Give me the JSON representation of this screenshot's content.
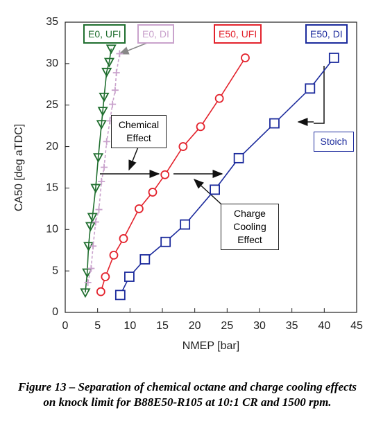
{
  "chart_data": {
    "type": "line",
    "x_label": "NMEP [bar]",
    "y_label": "CA50 [deg aTDC]",
    "xlim": [
      0,
      45
    ],
    "xticks": [
      0,
      5,
      10,
      15,
      20,
      25,
      30,
      35,
      40,
      45
    ],
    "ylim": [
      0,
      35
    ],
    "yticks": [
      0,
      5,
      10,
      15,
      20,
      25,
      30,
      35
    ],
    "grid": false,
    "series": [
      {
        "name": "E0, UFI",
        "color": "#1f6e2e",
        "marker": "triangle",
        "x": [
          3.1,
          3.4,
          3.6,
          3.9,
          4.2,
          4.7,
          5.1,
          5.6,
          5.8,
          6.0,
          6.4,
          6.8,
          7.1
        ],
        "y": [
          2.4,
          4.8,
          8.0,
          10.4,
          11.5,
          15.0,
          18.7,
          22.7,
          24.3,
          26.0,
          29.0,
          30.2,
          31.8
        ]
      },
      {
        "name": "E0, DI",
        "color": "#c9a2cc",
        "marker": "plus",
        "x": [
          3.5,
          4.0,
          4.3,
          4.7,
          5.2,
          5.6,
          6.0,
          6.4,
          6.9,
          7.3,
          7.7,
          7.9,
          8.4
        ],
        "y": [
          3.6,
          5.3,
          8.0,
          10.9,
          12.4,
          15.8,
          17.5,
          20.6,
          23.1,
          25.1,
          26.8,
          28.9,
          31.2
        ]
      },
      {
        "name": "E50, UFI",
        "color": "#e3222c",
        "marker": "circle",
        "x": [
          5.5,
          6.2,
          7.5,
          9.0,
          11.4,
          13.5,
          15.4,
          18.2,
          20.9,
          23.8,
          27.8
        ],
        "y": [
          2.5,
          4.3,
          6.9,
          8.9,
          12.5,
          14.5,
          16.6,
          20.0,
          22.4,
          25.8,
          30.7
        ]
      },
      {
        "name": "E50, DI",
        "color": "#1b2a9c",
        "marker": "square",
        "x": [
          8.5,
          9.9,
          12.3,
          15.5,
          18.5,
          23.1,
          26.8,
          32.3,
          37.8,
          41.5
        ],
        "y": [
          2.1,
          4.3,
          6.4,
          8.5,
          10.6,
          14.8,
          18.6,
          22.8,
          27.0,
          30.7
        ]
      }
    ],
    "annotations": [
      "Chemical Effect",
      "Charge Cooling Effect",
      "Stoich"
    ],
    "caption": "Figure 13 – Separation of chemical octane and charge cooling effects on knock limit for B88E50-R105 at 10:1 CR and 1500 rpm."
  }
}
